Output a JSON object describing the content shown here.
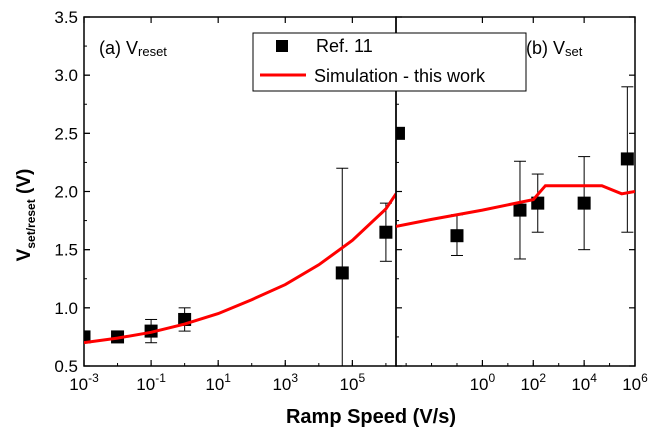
{
  "chart_data": [
    {
      "type": "scatter",
      "panel_label": "(a) V",
      "panel_label_sub": "reset",
      "x_scale": "log",
      "xlim": [
        0.001,
        2000000
      ],
      "ylim": [
        0.5,
        3.5
      ],
      "x_tick_base": "10",
      "x_ticks": [
        {
          "value": 0.001,
          "exp": "-3"
        },
        {
          "value": 0.1,
          "exp": "-1"
        },
        {
          "value": 10,
          "exp": "1"
        },
        {
          "value": 1000,
          "exp": "3"
        },
        {
          "value": 100000,
          "exp": "5"
        }
      ],
      "y_ticks": [
        {
          "value": 0.5,
          "label": "0.5"
        },
        {
          "value": 1.0,
          "label": "1.0"
        },
        {
          "value": 1.5,
          "label": "1.5"
        },
        {
          "value": 2.0,
          "label": "2.0"
        },
        {
          "value": 2.5,
          "label": "2.5"
        },
        {
          "value": 3.0,
          "label": "3.0"
        },
        {
          "value": 3.5,
          "label": "3.5"
        }
      ],
      "series": [
        {
          "name": "Ref. 11",
          "marker": "square",
          "points": [
            {
              "x": 0.001,
              "y": 0.75,
              "ylo": 0.75,
              "yhi": 0.75
            },
            {
              "x": 0.01,
              "y": 0.75,
              "ylo": 0.72,
              "yhi": 0.78
            },
            {
              "x": 0.1,
              "y": 0.8,
              "ylo": 0.7,
              "yhi": 0.9
            },
            {
              "x": 1,
              "y": 0.9,
              "ylo": 0.8,
              "yhi": 1.0
            },
            {
              "x": 50000,
              "y": 1.3,
              "ylo": 0.5,
              "yhi": 2.2
            },
            {
              "x": 1000000,
              "y": 1.65,
              "ylo": 1.4,
              "yhi": 1.9
            }
          ]
        },
        {
          "name": "Simulation - this work",
          "line": true,
          "x": [
            0.001,
            0.01,
            0.1,
            1,
            10,
            100,
            1000,
            10000,
            100000,
            1000000,
            2000000
          ],
          "y": [
            0.7,
            0.74,
            0.79,
            0.86,
            0.95,
            1.07,
            1.2,
            1.37,
            1.58,
            1.85,
            1.98
          ]
        }
      ]
    },
    {
      "type": "scatter",
      "panel_label": "(b) V",
      "panel_label_sub": "set",
      "x_scale": "log",
      "xlim": [
        0.0004,
        1000000
      ],
      "ylim": [
        0.5,
        3.5
      ],
      "x_tick_base": "10",
      "x_ticks": [
        {
          "value": 1,
          "exp": "0"
        },
        {
          "value": 100,
          "exp": "2"
        },
        {
          "value": 10000,
          "exp": "4"
        },
        {
          "value": 1000000,
          "exp": "6"
        }
      ],
      "series": [
        {
          "name": "Ref. 11",
          "marker": "square",
          "points": [
            {
              "x": 0.0005,
              "y": 2.5,
              "ylo": 2.5,
              "yhi": 2.5
            },
            {
              "x": 0.1,
              "y": 1.62,
              "ylo": 1.45,
              "yhi": 1.8
            },
            {
              "x": 30,
              "y": 1.84,
              "ylo": 1.42,
              "yhi": 2.26
            },
            {
              "x": 150,
              "y": 1.9,
              "ylo": 1.65,
              "yhi": 2.15
            },
            {
              "x": 10000,
              "y": 1.9,
              "ylo": 1.5,
              "yhi": 2.3
            },
            {
              "x": 500000,
              "y": 2.28,
              "ylo": 1.65,
              "yhi": 2.9
            }
          ]
        },
        {
          "name": "Simulation - this work",
          "line": true,
          "x": [
            0.0004,
            0.01,
            1,
            100,
            300,
            1000,
            10000,
            50000,
            300000,
            1000000
          ],
          "y": [
            1.7,
            1.76,
            1.84,
            1.93,
            2.05,
            2.05,
            2.05,
            2.05,
            1.98,
            2.0
          ]
        }
      ]
    }
  ],
  "shared": {
    "y_axis_title": "V",
    "y_axis_title_sub": "set/reset",
    "y_axis_title_unit": " (V)",
    "x_axis_title": "Ramp Speed (V/s)",
    "legend": [
      {
        "label": "Ref. 11",
        "symbol": "square"
      },
      {
        "label": "Simulation - this work",
        "symbol": "line"
      }
    ]
  },
  "colors": {
    "simulation": "#ff0000",
    "marker": "#000000",
    "axis": "#000000"
  }
}
